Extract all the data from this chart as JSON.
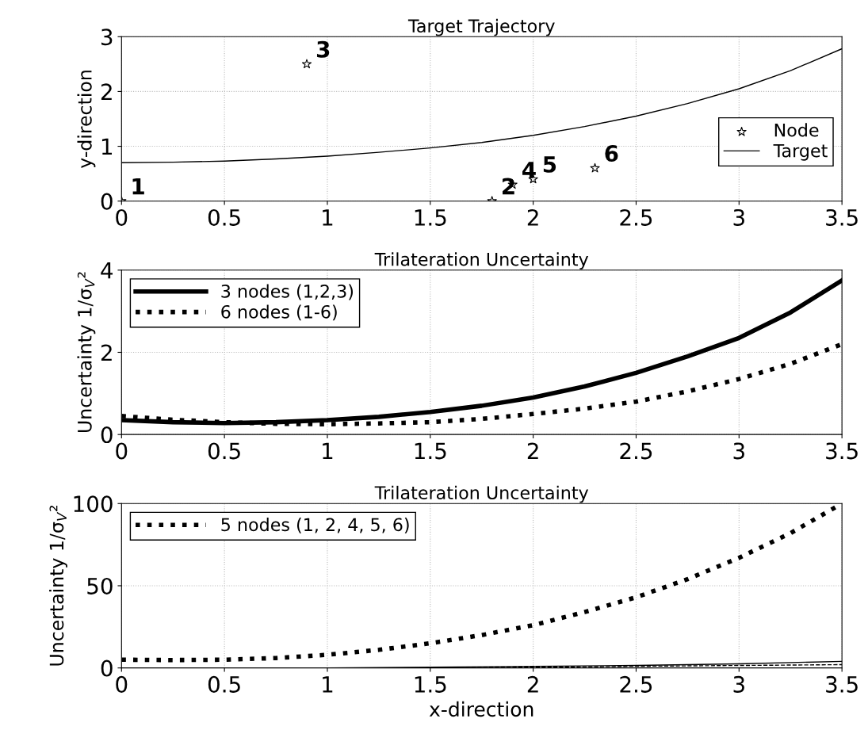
{
  "chart_data": [
    {
      "type": "scatter",
      "title": "Target Trajectory",
      "ylabel": "y-direction",
      "xlim": [
        0,
        3.5
      ],
      "xticks": [
        0,
        0.5,
        1,
        1.5,
        2,
        2.5,
        3,
        3.5
      ],
      "ylim": [
        0,
        3
      ],
      "yticks": [
        0,
        1,
        2,
        3
      ],
      "grid": true,
      "legend": "center right",
      "series": [
        {
          "name": "Node",
          "type": "scatter",
          "marker": "star",
          "color": "#000000",
          "x": [
            0,
            1.8,
            0.9,
            1.9,
            2.0,
            2.3
          ],
          "values": [
            0,
            0,
            2.5,
            0.3,
            0.4,
            0.6
          ]
        },
        {
          "name": "Target",
          "type": "line",
          "marker": "none",
          "line_style": "solid",
          "color": "#000000",
          "x": [
            0,
            0.25,
            0.5,
            0.75,
            1,
            1.25,
            1.5,
            1.75,
            2,
            2.25,
            2.5,
            2.75,
            3,
            3.25,
            3.5
          ],
          "values": [
            0.7,
            0.71,
            0.73,
            0.77,
            0.82,
            0.89,
            0.97,
            1.07,
            1.2,
            1.36,
            1.55,
            1.78,
            2.05,
            2.38,
            2.78
          ]
        }
      ],
      "annotations": [
        {
          "text": "1",
          "x": 0,
          "y": 0
        },
        {
          "text": "2",
          "x": 1.8,
          "y": 0
        },
        {
          "text": "3",
          "x": 0.9,
          "y": 2.5
        },
        {
          "text": "4",
          "x": 1.9,
          "y": 0.3
        },
        {
          "text": "5",
          "x": 2.0,
          "y": 0.4
        },
        {
          "text": "6",
          "x": 2.3,
          "y": 0.6
        }
      ]
    },
    {
      "type": "line",
      "title": "Trilateration Uncertainty",
      "ylabel": "Uncertainty 1/σ$_{V}$²",
      "xlim": [
        0,
        3.5
      ],
      "xticks": [
        0,
        0.5,
        1,
        1.5,
        2,
        2.5,
        3,
        3.5
      ],
      "ylim": [
        0,
        4
      ],
      "yticks": [
        0,
        2,
        4
      ],
      "grid": true,
      "legend": "top left",
      "series": [
        {
          "name": "3 nodes (1,2,3)",
          "line_style": "solid",
          "color": "#000000",
          "x": [
            0,
            0.25,
            0.5,
            0.75,
            1,
            1.25,
            1.5,
            1.75,
            2,
            2.25,
            2.5,
            2.75,
            3,
            3.25,
            3.5
          ],
          "values": [
            0.35,
            0.3,
            0.28,
            0.3,
            0.35,
            0.43,
            0.55,
            0.7,
            0.9,
            1.17,
            1.5,
            1.9,
            2.35,
            2.97,
            3.75
          ]
        },
        {
          "name": "6 nodes (1-6)",
          "line_style": "dotted",
          "color": "#000000",
          "x": [
            0,
            0.25,
            0.5,
            0.75,
            1,
            1.25,
            1.5,
            1.75,
            2,
            2.25,
            2.5,
            2.75,
            3,
            3.25,
            3.5
          ],
          "values": [
            0.45,
            0.36,
            0.3,
            0.26,
            0.25,
            0.27,
            0.3,
            0.38,
            0.5,
            0.63,
            0.8,
            1.05,
            1.35,
            1.72,
            2.2
          ]
        }
      ]
    },
    {
      "type": "line",
      "title": "Trilateration Uncertainty",
      "ylabel": "Uncertainty 1/σ$_{V}$²",
      "xlabel": "x-direction",
      "xlim": [
        0,
        3.5
      ],
      "xticks": [
        0,
        0.5,
        1,
        1.5,
        2,
        2.5,
        3,
        3.5
      ],
      "ylim": [
        0,
        100
      ],
      "yticks": [
        0,
        50,
        100
      ],
      "grid": true,
      "legend": "top left",
      "series": [
        {
          "name": "5 nodes (1, 2, 4, 5, 6)",
          "line_style": "dotted",
          "color": "#000000",
          "x": [
            0,
            0.25,
            0.5,
            0.75,
            1,
            1.25,
            1.5,
            1.75,
            2,
            2.25,
            2.5,
            2.75,
            3,
            3.25,
            3.5
          ],
          "values": [
            5,
            4.8,
            5,
            6,
            8,
            11,
            15,
            20,
            26,
            34,
            43,
            54,
            67,
            82,
            100
          ]
        },
        {
          "line_style": "solid",
          "color": "#000000",
          "x": [
            0,
            0.5,
            1,
            1.5,
            2,
            2.5,
            3,
            3.5
          ],
          "values": [
            0,
            0,
            0,
            0.5,
            1,
            1.5,
            2.5,
            4
          ]
        },
        {
          "line_style": "dashed",
          "color": "#000000",
          "x": [
            0,
            0.5,
            1,
            1.5,
            2,
            2.5,
            3,
            3.5
          ],
          "values": [
            0,
            0,
            0,
            0,
            0.5,
            1,
            1.5,
            2
          ]
        }
      ]
    }
  ]
}
